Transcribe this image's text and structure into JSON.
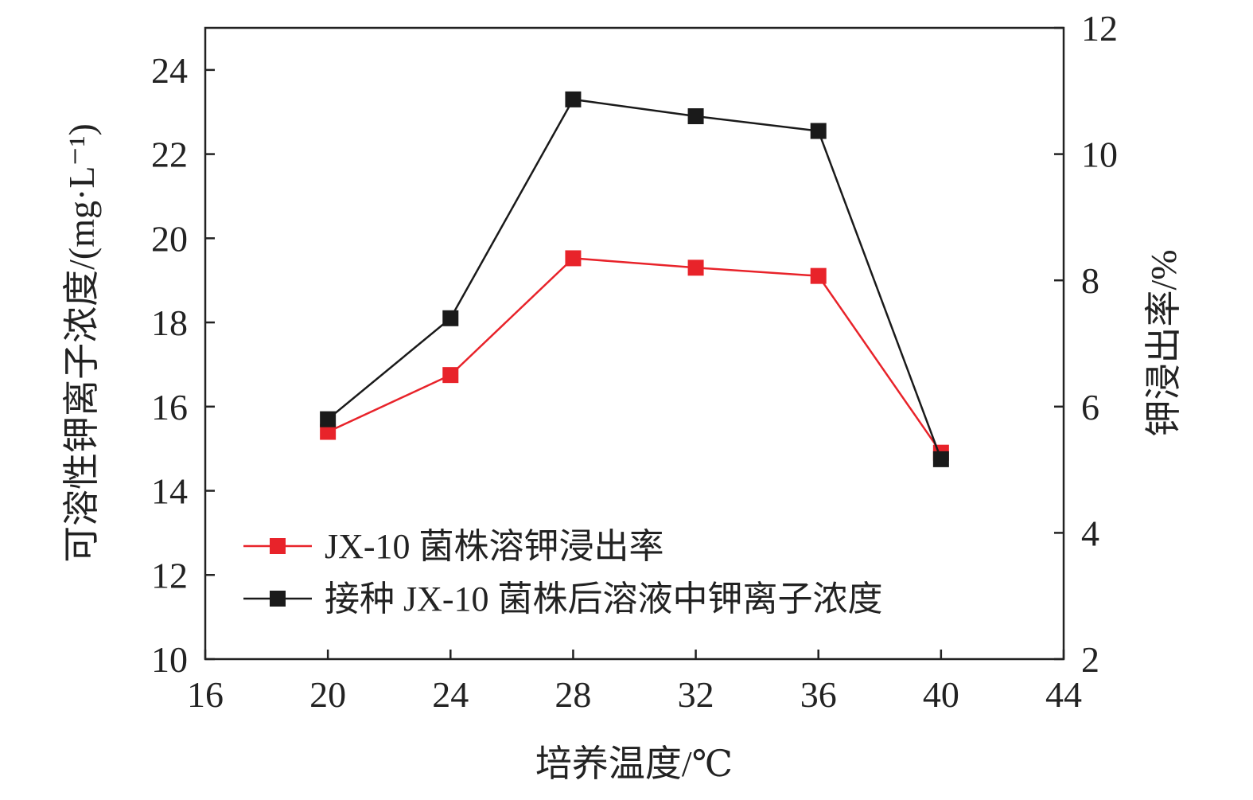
{
  "chart_data": {
    "type": "line",
    "xlabel": "培养温度/℃",
    "ylabel_left": "可溶性钾离子浓度/(mg·L⁻¹)",
    "ylabel_right": "钾浸出率/%",
    "xlim": [
      16,
      44
    ],
    "ylim_left": [
      10,
      25
    ],
    "ylim_right": [
      2,
      12
    ],
    "x_ticks": [
      16,
      20,
      24,
      28,
      32,
      36,
      40,
      44
    ],
    "y_left_ticks": [
      10,
      12,
      14,
      16,
      18,
      20,
      22,
      24
    ],
    "y_right_ticks": [
      2,
      4,
      6,
      8,
      10,
      12
    ],
    "grid": false,
    "legend_position": "bottom-left",
    "series": [
      {
        "name": "JX-10 菌株溶钾浸出率",
        "axis": "right",
        "color": "#e8232a",
        "marker": "square",
        "x": [
          20,
          24,
          28,
          32,
          36,
          40
        ],
        "values": [
          5.6,
          6.5,
          8.35,
          8.2,
          8.07,
          5.27
        ]
      },
      {
        "name": "接种 JX-10 菌株后溶液中钾离子浓度",
        "axis": "left",
        "color": "#1a1a1a",
        "marker": "square",
        "x": [
          20,
          24,
          28,
          32,
          36,
          40
        ],
        "values": [
          15.7,
          18.1,
          23.3,
          22.9,
          22.55,
          14.75
        ]
      }
    ]
  }
}
